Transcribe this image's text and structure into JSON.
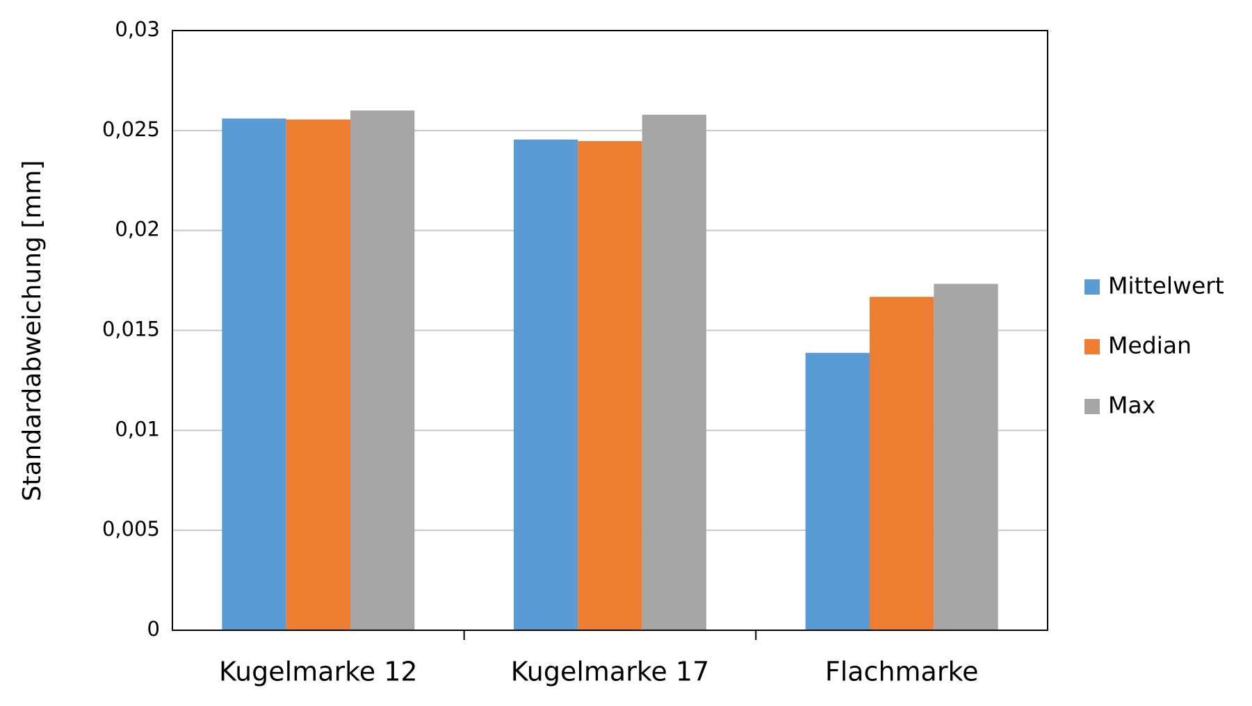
{
  "chart_data": {
    "type": "bar",
    "y_label": "Standardabweichung [mm]",
    "categories": [
      "Kugelmarke 12",
      "Kugelmarke 17",
      "Flachmarke"
    ],
    "series": [
      {
        "name": "Mittelwert",
        "color": "#5b9bd5",
        "values": [
          0.0256,
          0.02455,
          0.01388
        ]
      },
      {
        "name": "Median",
        "color": "#ed7d31",
        "values": [
          0.02555,
          0.02447,
          0.01668
        ]
      },
      {
        "name": "Max",
        "color": "#a5a5a5",
        "values": [
          0.026,
          0.02579,
          0.01733
        ]
      }
    ],
    "ylim": [
      0,
      0.03
    ],
    "yticks": [
      0,
      {
        "value": 0.005,
        "label": "0,005"
      },
      {
        "value": 0.01,
        "label": "0,01"
      },
      {
        "value": 0.015,
        "label": "0,015"
      },
      {
        "value": 0.02,
        "label": "0,02"
      },
      {
        "value": 0.025,
        "label": "0,025"
      },
      {
        "value": 0.03,
        "label": "0,03"
      }
    ],
    "grid": true,
    "legend": "right"
  }
}
